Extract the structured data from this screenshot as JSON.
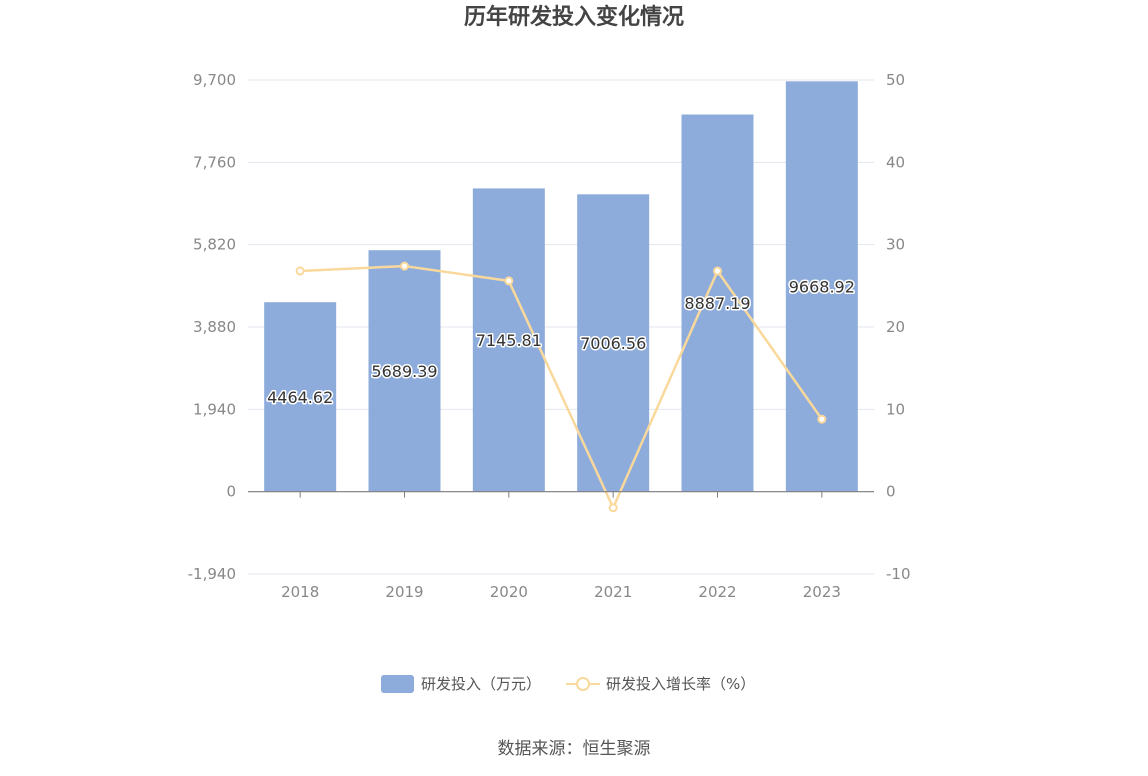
{
  "chart_data": {
    "type": "bar",
    "title": "历年研发投入变化情况",
    "categories": [
      "2018",
      "2019",
      "2020",
      "2021",
      "2022",
      "2023"
    ],
    "series": [
      {
        "name": "研发投入（万元）",
        "type": "bar",
        "axis": "left",
        "color": "#8eacdb",
        "values": [
          4464.62,
          5689.39,
          7145.81,
          7006.56,
          8887.19,
          9668.92
        ],
        "labels": [
          "4464.62",
          "5689.39",
          "7145.81",
          "7006.56",
          "8887.19",
          "9668.92"
        ]
      },
      {
        "name": "研发投入增长率（%）",
        "type": "line",
        "axis": "right",
        "color": "#f9d99b",
        "values": [
          26.8,
          27.4,
          25.6,
          -1.95,
          26.8,
          8.8
        ]
      }
    ],
    "y_left": {
      "ylim": [
        -1940,
        9700
      ],
      "ticks": [
        "9,700",
        "7,760",
        "5,820",
        "3,880",
        "1,940",
        "0",
        "-1,940"
      ]
    },
    "y_right": {
      "ylim": [
        -10,
        50
      ],
      "ticks": [
        "50",
        "40",
        "30",
        "20",
        "10",
        "0",
        "-10"
      ]
    },
    "grid": true,
    "legend_position": "bottom"
  },
  "source": "数据来源：恒生聚源"
}
